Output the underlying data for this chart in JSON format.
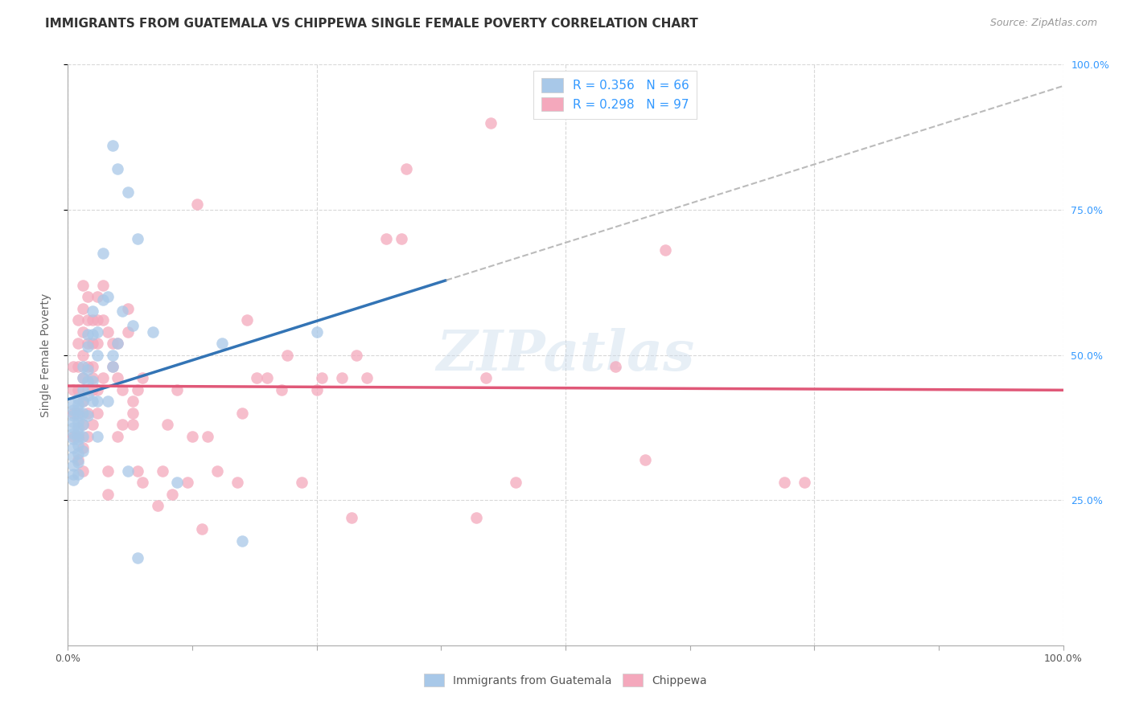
{
  "title": "IMMIGRANTS FROM GUATEMALA VS CHIPPEWA SINGLE FEMALE POVERTY CORRELATION CHART",
  "source": "Source: ZipAtlas.com",
  "ylabel": "Single Female Poverty",
  "xlim": [
    0.0,
    1.0
  ],
  "ylim": [
    0.0,
    1.0
  ],
  "blue_R": 0.356,
  "blue_N": 66,
  "pink_R": 0.298,
  "pink_N": 97,
  "blue_color": "#a8c8e8",
  "pink_color": "#f4a8bc",
  "blue_line_color": "#3374b5",
  "pink_line_color": "#e05878",
  "dashed_line_color": "#bbbbbb",
  "right_tick_color": "#3399ff",
  "watermark": "ZIPatlas",
  "blue_points": [
    [
      0.005,
      0.285
    ],
    [
      0.005,
      0.295
    ],
    [
      0.005,
      0.31
    ],
    [
      0.005,
      0.325
    ],
    [
      0.005,
      0.34
    ],
    [
      0.005,
      0.355
    ],
    [
      0.005,
      0.365
    ],
    [
      0.005,
      0.375
    ],
    [
      0.005,
      0.385
    ],
    [
      0.005,
      0.395
    ],
    [
      0.005,
      0.405
    ],
    [
      0.005,
      0.415
    ],
    [
      0.01,
      0.295
    ],
    [
      0.01,
      0.315
    ],
    [
      0.01,
      0.33
    ],
    [
      0.01,
      0.345
    ],
    [
      0.01,
      0.355
    ],
    [
      0.01,
      0.365
    ],
    [
      0.01,
      0.375
    ],
    [
      0.01,
      0.385
    ],
    [
      0.01,
      0.395
    ],
    [
      0.01,
      0.405
    ],
    [
      0.01,
      0.415
    ],
    [
      0.01,
      0.425
    ],
    [
      0.015,
      0.335
    ],
    [
      0.015,
      0.36
    ],
    [
      0.015,
      0.38
    ],
    [
      0.015,
      0.4
    ],
    [
      0.015,
      0.42
    ],
    [
      0.015,
      0.44
    ],
    [
      0.015,
      0.46
    ],
    [
      0.015,
      0.48
    ],
    [
      0.02,
      0.395
    ],
    [
      0.02,
      0.43
    ],
    [
      0.02,
      0.455
    ],
    [
      0.02,
      0.475
    ],
    [
      0.02,
      0.515
    ],
    [
      0.02,
      0.535
    ],
    [
      0.025,
      0.42
    ],
    [
      0.025,
      0.455
    ],
    [
      0.025,
      0.535
    ],
    [
      0.025,
      0.575
    ],
    [
      0.03,
      0.36
    ],
    [
      0.03,
      0.42
    ],
    [
      0.03,
      0.5
    ],
    [
      0.03,
      0.54
    ],
    [
      0.035,
      0.595
    ],
    [
      0.035,
      0.675
    ],
    [
      0.04,
      0.42
    ],
    [
      0.04,
      0.6
    ],
    [
      0.045,
      0.48
    ],
    [
      0.045,
      0.5
    ],
    [
      0.05,
      0.52
    ],
    [
      0.055,
      0.575
    ],
    [
      0.06,
      0.3
    ],
    [
      0.06,
      0.78
    ],
    [
      0.065,
      0.55
    ],
    [
      0.07,
      0.15
    ],
    [
      0.07,
      0.7
    ],
    [
      0.085,
      0.54
    ],
    [
      0.11,
      0.28
    ],
    [
      0.155,
      0.52
    ],
    [
      0.175,
      0.18
    ],
    [
      0.25,
      0.54
    ],
    [
      0.045,
      0.86
    ],
    [
      0.05,
      0.82
    ]
  ],
  "pink_points": [
    [
      0.005,
      0.36
    ],
    [
      0.005,
      0.4
    ],
    [
      0.005,
      0.44
    ],
    [
      0.005,
      0.48
    ],
    [
      0.01,
      0.32
    ],
    [
      0.01,
      0.36
    ],
    [
      0.01,
      0.4
    ],
    [
      0.01,
      0.44
    ],
    [
      0.01,
      0.48
    ],
    [
      0.01,
      0.52
    ],
    [
      0.01,
      0.56
    ],
    [
      0.015,
      0.3
    ],
    [
      0.015,
      0.34
    ],
    [
      0.015,
      0.38
    ],
    [
      0.015,
      0.42
    ],
    [
      0.015,
      0.46
    ],
    [
      0.015,
      0.5
    ],
    [
      0.015,
      0.54
    ],
    [
      0.015,
      0.58
    ],
    [
      0.015,
      0.62
    ],
    [
      0.02,
      0.36
    ],
    [
      0.02,
      0.4
    ],
    [
      0.02,
      0.44
    ],
    [
      0.02,
      0.48
    ],
    [
      0.02,
      0.52
    ],
    [
      0.02,
      0.56
    ],
    [
      0.02,
      0.6
    ],
    [
      0.025,
      0.38
    ],
    [
      0.025,
      0.44
    ],
    [
      0.025,
      0.46
    ],
    [
      0.025,
      0.48
    ],
    [
      0.025,
      0.52
    ],
    [
      0.025,
      0.56
    ],
    [
      0.03,
      0.4
    ],
    [
      0.03,
      0.44
    ],
    [
      0.03,
      0.52
    ],
    [
      0.03,
      0.56
    ],
    [
      0.03,
      0.6
    ],
    [
      0.035,
      0.46
    ],
    [
      0.035,
      0.56
    ],
    [
      0.035,
      0.62
    ],
    [
      0.04,
      0.26
    ],
    [
      0.04,
      0.3
    ],
    [
      0.04,
      0.54
    ],
    [
      0.045,
      0.48
    ],
    [
      0.045,
      0.52
    ],
    [
      0.05,
      0.36
    ],
    [
      0.05,
      0.46
    ],
    [
      0.05,
      0.52
    ],
    [
      0.055,
      0.38
    ],
    [
      0.055,
      0.44
    ],
    [
      0.06,
      0.54
    ],
    [
      0.06,
      0.58
    ],
    [
      0.065,
      0.38
    ],
    [
      0.065,
      0.4
    ],
    [
      0.065,
      0.42
    ],
    [
      0.07,
      0.3
    ],
    [
      0.07,
      0.44
    ],
    [
      0.075,
      0.28
    ],
    [
      0.075,
      0.46
    ],
    [
      0.09,
      0.24
    ],
    [
      0.095,
      0.3
    ],
    [
      0.1,
      0.38
    ],
    [
      0.105,
      0.26
    ],
    [
      0.11,
      0.44
    ],
    [
      0.12,
      0.28
    ],
    [
      0.125,
      0.36
    ],
    [
      0.135,
      0.2
    ],
    [
      0.14,
      0.36
    ],
    [
      0.15,
      0.3
    ],
    [
      0.17,
      0.28
    ],
    [
      0.175,
      0.4
    ],
    [
      0.19,
      0.46
    ],
    [
      0.2,
      0.46
    ],
    [
      0.215,
      0.44
    ],
    [
      0.22,
      0.5
    ],
    [
      0.235,
      0.28
    ],
    [
      0.25,
      0.44
    ],
    [
      0.255,
      0.46
    ],
    [
      0.275,
      0.46
    ],
    [
      0.285,
      0.22
    ],
    [
      0.29,
      0.5
    ],
    [
      0.3,
      0.46
    ],
    [
      0.32,
      0.7
    ],
    [
      0.335,
      0.7
    ],
    [
      0.34,
      0.82
    ],
    [
      0.41,
      0.22
    ],
    [
      0.425,
      0.9
    ],
    [
      0.13,
      0.76
    ],
    [
      0.18,
      0.56
    ],
    [
      0.42,
      0.46
    ],
    [
      0.45,
      0.28
    ],
    [
      0.55,
      0.48
    ],
    [
      0.58,
      0.32
    ],
    [
      0.6,
      0.68
    ],
    [
      0.72,
      0.28
    ],
    [
      0.74,
      0.28
    ]
  ],
  "background_color": "#ffffff",
  "grid_color": "#d8d8d8",
  "title_fontsize": 11,
  "axis_fontsize": 10,
  "source_fontsize": 9
}
